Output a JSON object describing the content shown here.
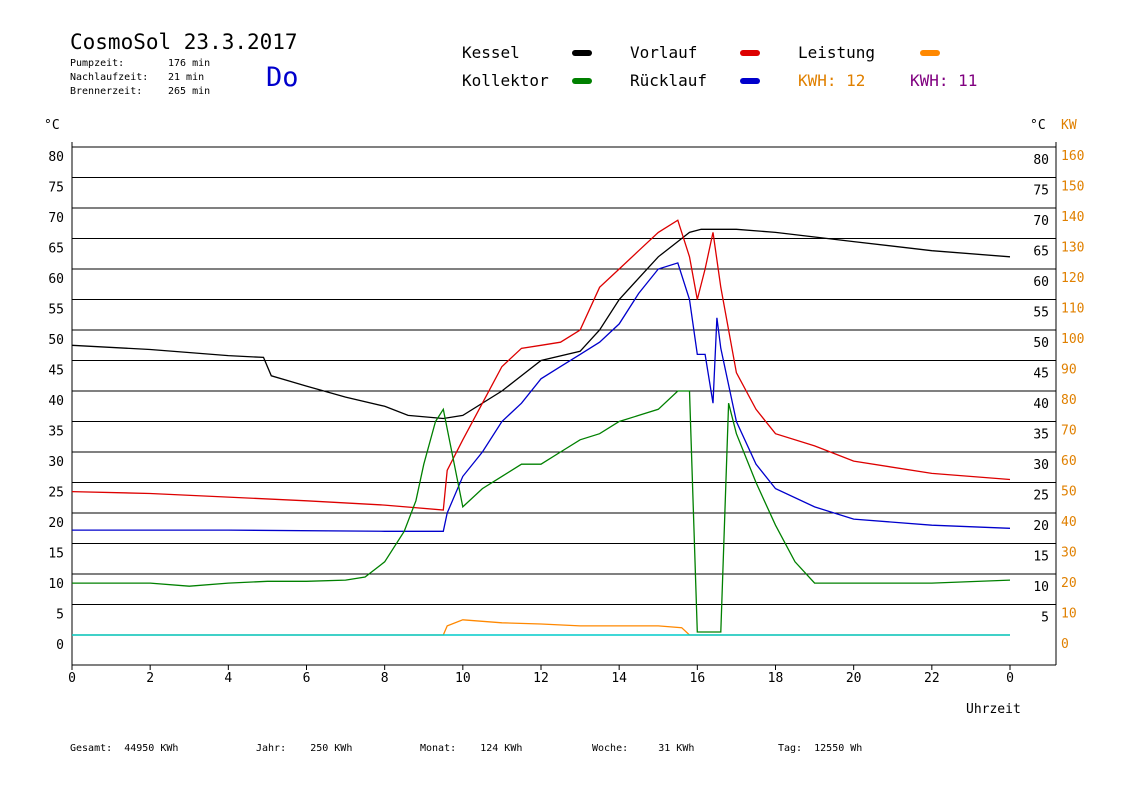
{
  "header": {
    "title": "CosmoSol 23.3.2017",
    "info": [
      {
        "label": "Pumpzeit:",
        "value": "176 min"
      },
      {
        "label": "Nachlaufzeit:",
        "value": "21 min"
      },
      {
        "label": "Brennerzeit:",
        "value": "265 min"
      }
    ],
    "weekday": "Do"
  },
  "legend": {
    "kessel": {
      "label": "Kessel",
      "color": "#000000"
    },
    "vorlauf": {
      "label": "Vorlauf",
      "color": "#dd0000"
    },
    "leistung": {
      "label": "Leistung",
      "color": "#ff8800"
    },
    "kollektor": {
      "label": "Kollektor",
      "color": "#008000"
    },
    "ruecklauf": {
      "label": "Rücklauf",
      "color": "#0000cc"
    },
    "kwh1": {
      "label": "KWH:",
      "value": "12",
      "color": "#e08000"
    },
    "kwh2": {
      "label": "KWH:",
      "value": "11",
      "color": "#800080"
    }
  },
  "footer": {
    "gesamt": {
      "label": "Gesamt:",
      "value": "44950 KWh"
    },
    "jahr": {
      "label": "Jahr:",
      "value": "250 KWh"
    },
    "monat": {
      "label": "Monat:",
      "value": "124 KWh"
    },
    "woche": {
      "label": "Woche:",
      "value": "31 KWh"
    },
    "tag": {
      "label": "Tag:",
      "value": "12550 Wh"
    }
  },
  "chart_data": {
    "type": "line",
    "xlabel": "Uhrzeit",
    "ylabel_left": "°C",
    "ylabel_right": "°C",
    "ylabel_right2": "KW",
    "xlim": [
      0,
      24
    ],
    "ylim": [
      0,
      80
    ],
    "x_ticks": [
      "0",
      "2",
      "4",
      "6",
      "8",
      "10",
      "12",
      "14",
      "16",
      "18",
      "20",
      "22",
      "0"
    ],
    "y_ticks_left": [
      "0",
      "5",
      "10",
      "15",
      "20",
      "25",
      "30",
      "35",
      "40",
      "45",
      "50",
      "55",
      "60",
      "65",
      "70",
      "75",
      "80"
    ],
    "y_ticks_right": [
      "5",
      "10",
      "15",
      "20",
      "25",
      "30",
      "35",
      "40",
      "45",
      "50",
      "55",
      "60",
      "65",
      "70",
      "75",
      "80"
    ],
    "y_ticks_kw": [
      "0",
      "10",
      "20",
      "30",
      "40",
      "50",
      "60",
      "70",
      "80",
      "90",
      "100",
      "110",
      "120",
      "130",
      "140",
      "150",
      "160"
    ],
    "grid": true,
    "series": [
      {
        "name": "Kessel",
        "color": "#000000",
        "x": [
          0,
          2,
          4,
          4.9,
          5.1,
          6,
          7,
          8,
          8.6,
          9.5,
          10,
          11,
          12,
          13,
          13.5,
          14,
          14.5,
          15,
          15.4,
          15.6,
          15.8,
          16.1,
          16.3,
          16.5,
          17,
          18,
          20,
          22,
          24
        ],
        "y": [
          47.5,
          46.8,
          45.8,
          45.5,
          42.5,
          40.8,
          39,
          37.5,
          36,
          35.5,
          36,
          40,
          45,
          46.5,
          50,
          55,
          58.5,
          62,
          64,
          65,
          66,
          66.5,
          66.5,
          66.5,
          66.5,
          66,
          64.5,
          63,
          62
        ]
      },
      {
        "name": "Vorlauf",
        "color": "#dd0000",
        "x": [
          0,
          2,
          4,
          6,
          8,
          9.5,
          9.6,
          10,
          10.5,
          11,
          11.5,
          12,
          12.5,
          13,
          13.5,
          14,
          14.5,
          15,
          15.5,
          15.8,
          16,
          16.2,
          16.4,
          16.6,
          17,
          17.5,
          18,
          19,
          20,
          22,
          24
        ],
        "y": [
          23.5,
          23.2,
          22.6,
          22,
          21.3,
          20.5,
          27,
          32,
          38,
          44,
          47,
          47.5,
          48,
          50,
          57,
          60,
          63,
          66,
          68,
          62,
          55,
          60,
          66,
          57,
          43,
          37,
          33,
          31,
          28.5,
          26.5,
          25.5
        ]
      },
      {
        "name": "Rücklauf",
        "color": "#0000cc",
        "x": [
          0,
          4,
          8,
          9.5,
          9.6,
          10,
          10.5,
          11,
          11.5,
          12,
          12.5,
          13,
          13.5,
          14,
          14.5,
          15,
          15.5,
          15.8,
          16,
          16.2,
          16.4,
          16.5,
          16.6,
          17,
          17.5,
          18,
          19,
          20,
          22,
          24
        ],
        "y": [
          17.2,
          17.2,
          17,
          17,
          20,
          26,
          30,
          35,
          38,
          42,
          44,
          46,
          48,
          51,
          56,
          60,
          61,
          55,
          46,
          46,
          38,
          52,
          47,
          35,
          28,
          24,
          21,
          19,
          18,
          17.5
        ]
      },
      {
        "name": "Kollektor",
        "color": "#008000",
        "x": [
          0,
          2,
          3,
          4,
          5,
          6,
          7,
          7.5,
          8,
          8.5,
          8.8,
          9,
          9.3,
          9.5,
          10,
          10.5,
          11,
          11.5,
          12,
          12.5,
          13,
          13.5,
          14,
          14.5,
          15,
          15.5,
          15.8,
          16,
          16.2,
          16.4,
          16.6,
          16.8,
          17,
          17.5,
          18,
          18.5,
          19,
          20,
          22,
          24
        ],
        "y": [
          8.5,
          8.5,
          8,
          8.5,
          8.8,
          8.8,
          9,
          9.5,
          12,
          17,
          22,
          28,
          35,
          37,
          21,
          24,
          26,
          28,
          28,
          30,
          32,
          33,
          35,
          36,
          37,
          40,
          40,
          0.5,
          0.5,
          0.5,
          0.5,
          38,
          33,
          25,
          18,
          12,
          8.5,
          8.5,
          8.5,
          9
        ]
      },
      {
        "name": "Leistung",
        "color": "#ff8800",
        "x": [
          0,
          9.5,
          9.6,
          10,
          11,
          12,
          13,
          14,
          15,
          15.6,
          15.8,
          16,
          24
        ],
        "y": [
          0,
          0,
          1.5,
          2.5,
          2,
          1.8,
          1.5,
          1.5,
          1.5,
          1.2,
          0,
          0,
          0
        ]
      }
    ]
  }
}
